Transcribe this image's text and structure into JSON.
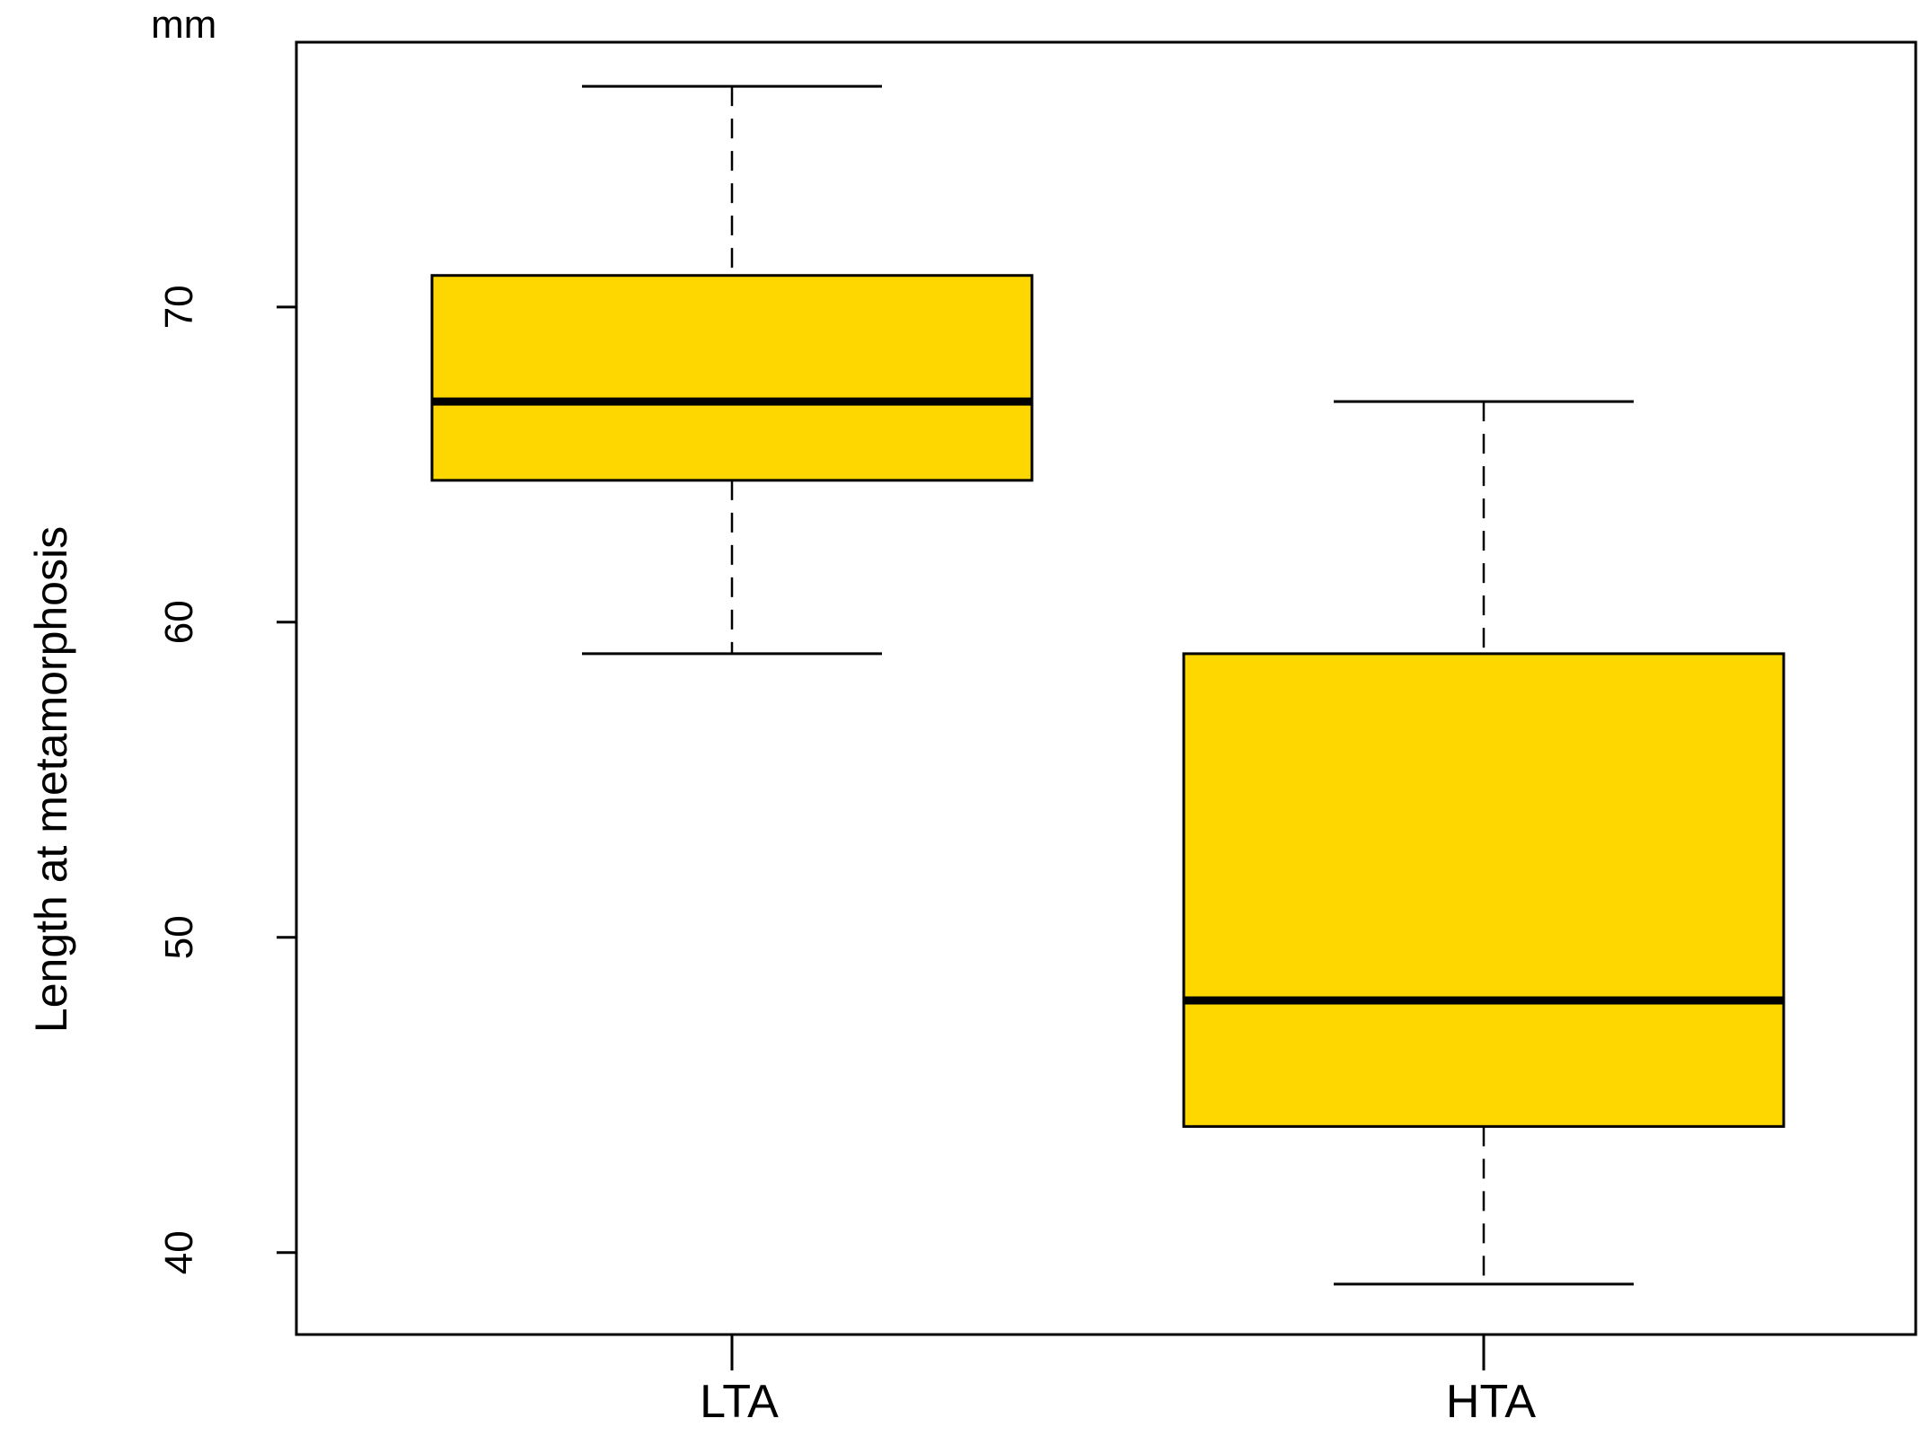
{
  "chart_data": {
    "type": "boxplot",
    "title": "",
    "xlabel": "",
    "ylabel": "Length at metamorphosis",
    "unit_label": "mm",
    "ylim": [
      37.4,
      78.4
    ],
    "yticks": [
      40,
      50,
      60,
      70
    ],
    "grid": false,
    "legend": "none",
    "colors": {
      "box_fill": "#FFD700",
      "stroke": "#000000",
      "background": "#FFFFFF"
    },
    "categories": [
      "LTA",
      "HTA"
    ],
    "boxes": [
      {
        "category": "LTA",
        "whisker_low": 59,
        "q1": 64.5,
        "median": 67,
        "q3": 71,
        "whisker_high": 77
      },
      {
        "category": "HTA",
        "whisker_low": 39,
        "q1": 44,
        "median": 48,
        "q3": 59,
        "whisker_high": 67
      }
    ]
  }
}
